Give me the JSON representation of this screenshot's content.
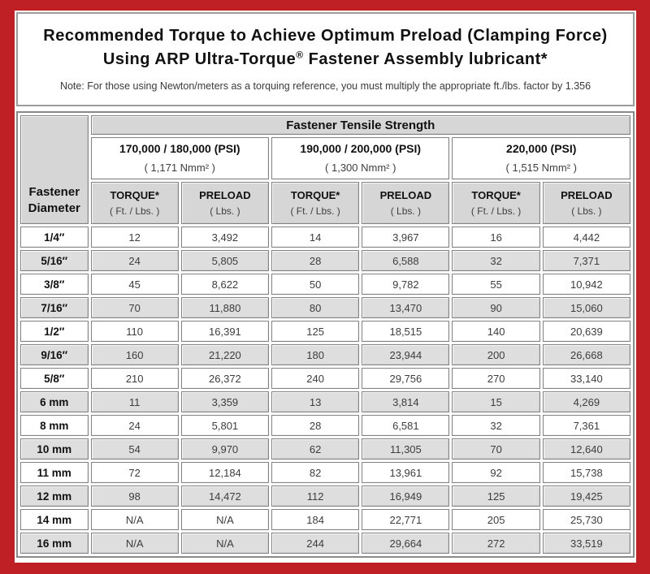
{
  "colors": {
    "frame_red": "#be2026",
    "cell_border": "#828282",
    "header_bg": "#d6d6d6",
    "shade": "#dedede"
  },
  "title": {
    "line1": "Recommended Torque to Achieve Optimum Preload (Clamping Force)",
    "line2": {
      "pre": "Using ARP Ultra-Torque",
      "sup": "®",
      "post": " Fastener Assembly lubricant*"
    },
    "note": "Note: For those using Newton/meters as a torquing reference, you must multiply the appropriate ft./lbs. factor by 1.356"
  },
  "table": {
    "corner_header": "Fastener Diameter",
    "tensile_header": "Fastener Tensile Strength",
    "groups": [
      {
        "psi": "170,000 / 180,000 (PSI)",
        "nmm": "( 1,171 Nmm² )"
      },
      {
        "psi": "190,000 / 200,000 (PSI)",
        "nmm": "( 1,300 Nmm² )"
      },
      {
        "psi": "220,000 (PSI)",
        "nmm": "( 1,515 Nmm² )"
      }
    ],
    "sub_headers": {
      "torque": "TORQUE*",
      "torque_unit": "( Ft. / Lbs. )",
      "preload": "PRELOAD",
      "preload_unit": "( Lbs. )"
    },
    "rows": [
      {
        "diameter": "1/4″",
        "values": [
          "12",
          "3,492",
          "14",
          "3,967",
          "16",
          "4,442"
        ]
      },
      {
        "diameter": "5/16″",
        "values": [
          "24",
          "5,805",
          "28",
          "6,588",
          "32",
          "7,371"
        ]
      },
      {
        "diameter": "3/8″",
        "values": [
          "45",
          "8,622",
          "50",
          "9,782",
          "55",
          "10,942"
        ]
      },
      {
        "diameter": "7/16″",
        "values": [
          "70",
          "11,880",
          "80",
          "13,470",
          "90",
          "15,060"
        ]
      },
      {
        "diameter": "1/2″",
        "values": [
          "110",
          "16,391",
          "125",
          "18,515",
          "140",
          "20,639"
        ]
      },
      {
        "diameter": "9/16″",
        "values": [
          "160",
          "21,220",
          "180",
          "23,944",
          "200",
          "26,668"
        ]
      },
      {
        "diameter": "5/8″",
        "values": [
          "210",
          "26,372",
          "240",
          "29,756",
          "270",
          "33,140"
        ]
      },
      {
        "diameter": "6 mm",
        "values": [
          "11",
          "3,359",
          "13",
          "3,814",
          "15",
          "4,269"
        ]
      },
      {
        "diameter": "8 mm",
        "values": [
          "24",
          "5,801",
          "28",
          "6,581",
          "32",
          "7,361"
        ]
      },
      {
        "diameter": "10 mm",
        "values": [
          "54",
          "9,970",
          "62",
          "11,305",
          "70",
          "12,640"
        ]
      },
      {
        "diameter": "11 mm",
        "values": [
          "72",
          "12,184",
          "82",
          "13,961",
          "92",
          "15,738"
        ]
      },
      {
        "diameter": "12 mm",
        "values": [
          "98",
          "14,472",
          "112",
          "16,949",
          "125",
          "19,425"
        ]
      },
      {
        "diameter": "14 mm",
        "values": [
          "N/A",
          "N/A",
          "184",
          "22,771",
          "205",
          "25,730"
        ]
      },
      {
        "diameter": "16 mm",
        "values": [
          "N/A",
          "N/A",
          "244",
          "29,664",
          "272",
          "33,519"
        ]
      }
    ]
  }
}
